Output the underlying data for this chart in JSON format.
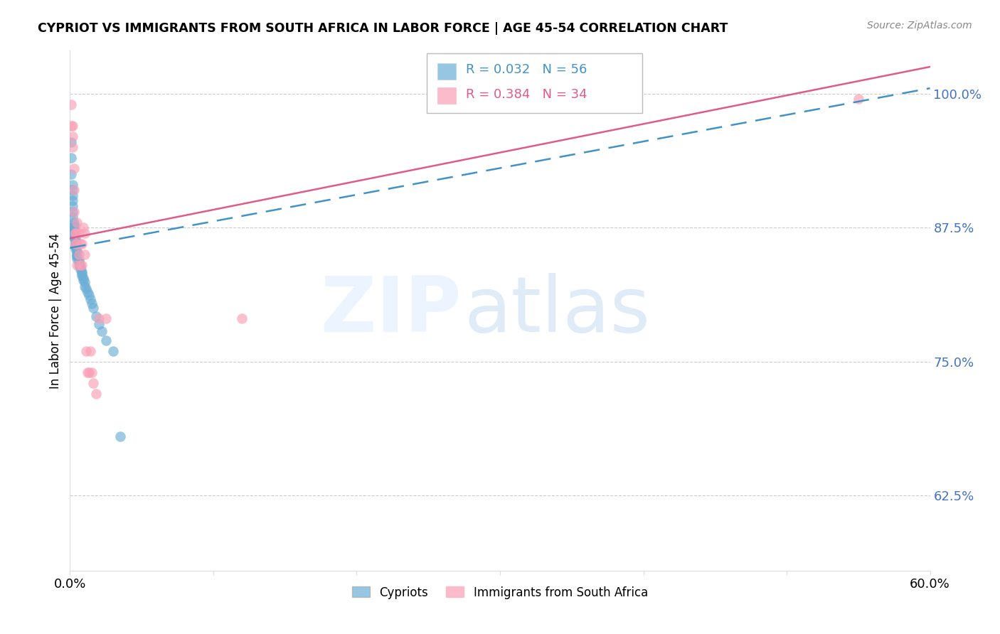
{
  "title": "CYPRIOT VS IMMIGRANTS FROM SOUTH AFRICA IN LABOR FORCE | AGE 45-54 CORRELATION CHART",
  "source": "Source: ZipAtlas.com",
  "ylabel": "In Labor Force | Age 45-54",
  "xlim": [
    0.0,
    0.6
  ],
  "ylim": [
    0.555,
    1.04
  ],
  "yticks": [
    0.625,
    0.75,
    0.875,
    1.0
  ],
  "yticklabels": [
    "62.5%",
    "75.0%",
    "87.5%",
    "100.0%"
  ],
  "cypriot_color": "#6baed6",
  "immigrant_color": "#fa9fb5",
  "trend_blue_color": "#4292c6",
  "trend_pink_color": "#e05a8a",
  "background_color": "#ffffff",
  "grid_color": "#cccccc",
  "tick_color": "#4472c4",
  "blue_trend_x": [
    0.0,
    0.6
  ],
  "blue_trend_y": [
    0.856,
    1.005
  ],
  "pink_trend_x": [
    0.0,
    0.6
  ],
  "pink_trend_y": [
    0.865,
    1.025
  ],
  "cypriot_x": [
    0.001,
    0.001,
    0.001,
    0.002,
    0.002,
    0.002,
    0.002,
    0.002,
    0.002,
    0.002,
    0.003,
    0.003,
    0.003,
    0.003,
    0.003,
    0.003,
    0.003,
    0.003,
    0.003,
    0.004,
    0.004,
    0.004,
    0.004,
    0.004,
    0.004,
    0.004,
    0.005,
    0.005,
    0.005,
    0.005,
    0.005,
    0.005,
    0.006,
    0.006,
    0.006,
    0.007,
    0.007,
    0.008,
    0.008,
    0.008,
    0.009,
    0.009,
    0.01,
    0.01,
    0.011,
    0.012,
    0.013,
    0.014,
    0.015,
    0.016,
    0.018,
    0.02,
    0.022,
    0.025,
    0.03,
    0.035
  ],
  "cypriot_y": [
    0.955,
    0.94,
    0.925,
    0.915,
    0.91,
    0.905,
    0.9,
    0.895,
    0.89,
    0.885,
    0.88,
    0.878,
    0.876,
    0.875,
    0.873,
    0.872,
    0.87,
    0.868,
    0.866,
    0.865,
    0.863,
    0.862,
    0.86,
    0.858,
    0.857,
    0.855,
    0.853,
    0.852,
    0.85,
    0.849,
    0.848,
    0.846,
    0.845,
    0.843,
    0.84,
    0.838,
    0.836,
    0.834,
    0.832,
    0.83,
    0.828,
    0.826,
    0.824,
    0.82,
    0.818,
    0.815,
    0.812,
    0.808,
    0.804,
    0.8,
    0.792,
    0.785,
    0.778,
    0.77,
    0.76,
    0.68
  ],
  "immigrant_x": [
    0.001,
    0.001,
    0.002,
    0.002,
    0.002,
    0.003,
    0.003,
    0.003,
    0.004,
    0.004,
    0.004,
    0.005,
    0.005,
    0.005,
    0.006,
    0.006,
    0.007,
    0.007,
    0.008,
    0.008,
    0.009,
    0.01,
    0.01,
    0.011,
    0.012,
    0.013,
    0.014,
    0.015,
    0.016,
    0.018,
    0.02,
    0.025,
    0.12,
    0.55
  ],
  "immigrant_y": [
    0.99,
    0.97,
    0.97,
    0.96,
    0.95,
    0.93,
    0.91,
    0.89,
    0.87,
    0.87,
    0.86,
    0.88,
    0.86,
    0.84,
    0.87,
    0.85,
    0.86,
    0.84,
    0.86,
    0.84,
    0.875,
    0.87,
    0.85,
    0.76,
    0.74,
    0.74,
    0.76,
    0.74,
    0.73,
    0.72,
    0.79,
    0.79,
    0.79,
    0.995
  ]
}
